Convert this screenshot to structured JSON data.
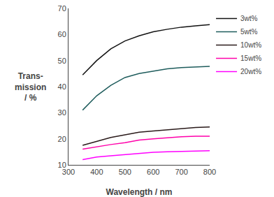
{
  "chart_data": {
    "type": "line",
    "xlabel": "Wavelength / nm",
    "ylabel": "Trans-\nmission\n/ %",
    "x": [
      350,
      400,
      450,
      500,
      550,
      600,
      650,
      700,
      750,
      800
    ],
    "series": [
      {
        "name": "3wt%",
        "color": "#111111",
        "values": [
          44.5,
          50.0,
          54.5,
          57.5,
          59.5,
          61.0,
          62.0,
          62.8,
          63.3,
          63.8
        ]
      },
      {
        "name": "5wt%",
        "color": "#1e5c5c",
        "values": [
          31.0,
          36.5,
          40.5,
          43.5,
          45.0,
          46.0,
          46.8,
          47.3,
          47.6,
          47.8
        ]
      },
      {
        "name": "10wt%",
        "color": "#2a1a1a",
        "values": [
          17.5,
          19.0,
          20.5,
          21.5,
          22.5,
          23.0,
          23.5,
          24.0,
          24.3,
          24.5
        ]
      },
      {
        "name": "15wt%",
        "color": "#ff00aa",
        "values": [
          16.0,
          17.0,
          17.8,
          18.5,
          19.5,
          20.0,
          20.5,
          20.8,
          21.0,
          21.0
        ]
      },
      {
        "name": "20wt%",
        "color": "#ff00ff",
        "values": [
          12.0,
          13.0,
          13.5,
          14.0,
          14.5,
          14.8,
          15.0,
          15.2,
          15.3,
          15.4
        ]
      }
    ],
    "xlim": [
      300,
      800
    ],
    "xticks": [
      300,
      400,
      500,
      600,
      700,
      800
    ],
    "ylim": [
      10,
      70
    ],
    "yticks": [
      10,
      20,
      30,
      40,
      50,
      60,
      70
    ],
    "grid": false,
    "legend": "right"
  }
}
